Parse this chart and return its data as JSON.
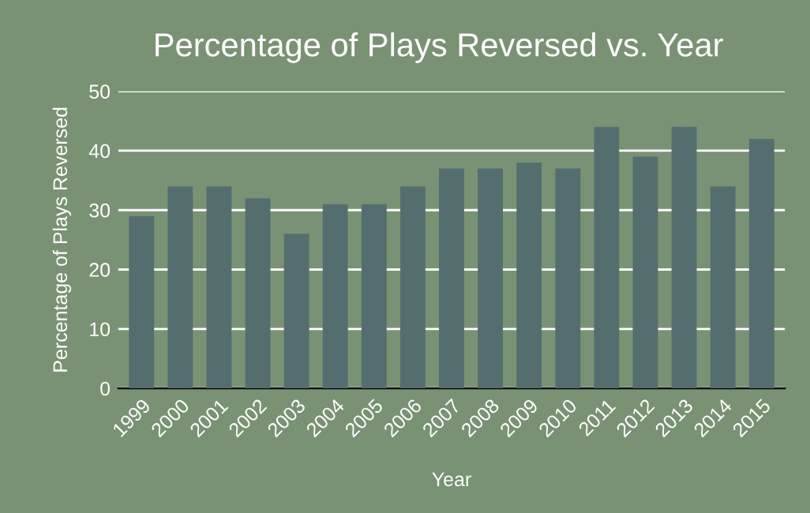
{
  "chart_data": {
    "type": "bar",
    "title": "Percentage of Plays Reversed vs. Year",
    "xlabel": "Year",
    "ylabel": "Percentage of Plays Reversed",
    "categories": [
      "1999",
      "2000",
      "2001",
      "2002",
      "2003",
      "2004",
      "2005",
      "2006",
      "2007",
      "2008",
      "2009",
      "2010",
      "2011",
      "2012",
      "2013",
      "2014",
      "2015"
    ],
    "values": [
      29,
      34,
      34,
      32,
      26,
      31,
      31,
      34,
      37,
      37,
      38,
      37,
      44,
      39,
      44,
      34,
      42
    ],
    "color": "#546e70",
    "ylim": [
      0,
      50
    ],
    "yticks": [
      0,
      10,
      20,
      30,
      40,
      50
    ],
    "grid": "y",
    "legend": false
  }
}
